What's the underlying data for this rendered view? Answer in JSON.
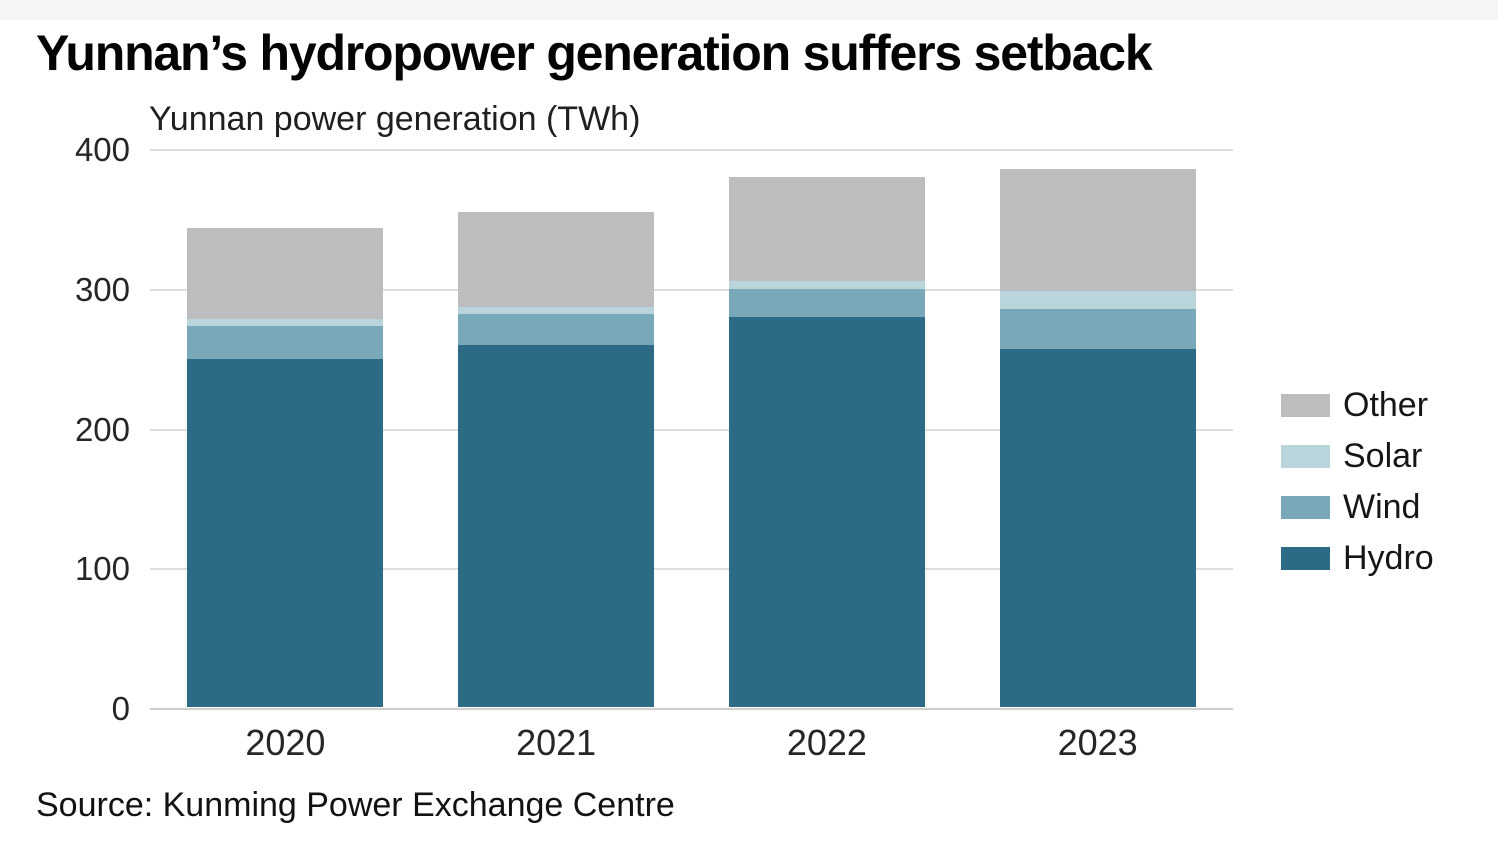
{
  "title": "Yunnan’s hydropower generation suffers setback",
  "subtitle": "Yunnan power generation (TWh)",
  "source_line": "Source: Kunming Power Exchange Centre",
  "chart_data": {
    "type": "bar",
    "stacked": true,
    "title": "Yunnan’s hydropower generation suffers setback",
    "subtitle": "Yunnan power generation (TWh)",
    "xlabel": "",
    "ylabel": "Yunnan power generation (TWh)",
    "categories": [
      "2020",
      "2021",
      "2022",
      "2023"
    ],
    "series": [
      {
        "name": "Hydro",
        "color": "#2d6a85",
        "values": [
          249,
          259,
          279,
          256
        ]
      },
      {
        "name": "Wind",
        "color": "#79a9b9",
        "values": [
          24,
          22,
          20,
          29
        ]
      },
      {
        "name": "Solar",
        "color": "#bad4dc",
        "values": [
          5,
          5,
          6,
          13
        ]
      },
      {
        "name": "Other",
        "color": "#bbbdbe",
        "values": [
          65,
          68,
          74,
          87
        ]
      }
    ],
    "totals": [
      343,
      354,
      379,
      385
    ],
    "ylim": [
      0,
      400
    ],
    "yticks": [
      0,
      100,
      200,
      300,
      400
    ],
    "grid": true,
    "legend_position": "right",
    "legend_order": [
      "Other",
      "Solar",
      "Wind",
      "Hydro"
    ]
  },
  "colors": {
    "background": "#ffffff",
    "grid": "#dedede",
    "zero_line": "#cfcfcf",
    "tick_text": "#262626",
    "title_text": "#040404"
  }
}
